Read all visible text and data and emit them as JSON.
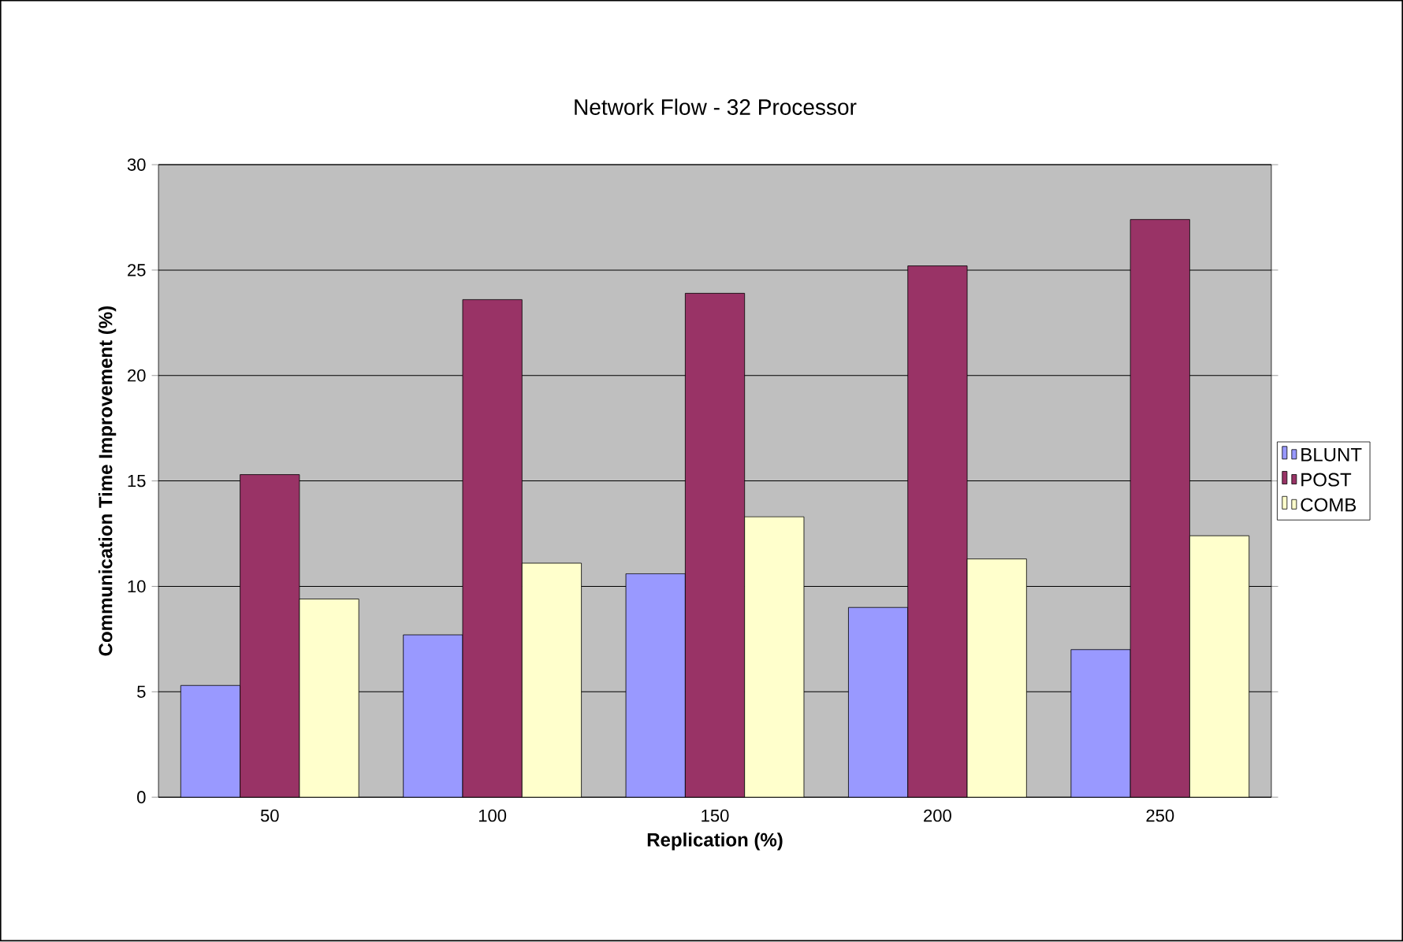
{
  "chart_data": {
    "type": "bar",
    "title": "Network Flow - 32 Processor",
    "xlabel": "Replication (%)",
    "ylabel": "Communication Time Improvement (%)",
    "categories": [
      "50",
      "100",
      "150",
      "200",
      "250"
    ],
    "series": [
      {
        "name": "BLUNT",
        "color": "#9999ff",
        "values": [
          5.3,
          7.7,
          10.6,
          9.0,
          7.0
        ]
      },
      {
        "name": "POST",
        "color": "#993366",
        "values": [
          15.3,
          23.6,
          23.9,
          25.2,
          27.4
        ]
      },
      {
        "name": "COMB",
        "color": "#ffffcc",
        "values": [
          9.4,
          11.1,
          13.3,
          11.3,
          12.4
        ]
      }
    ],
    "ylim": [
      0,
      30
    ],
    "yticks": [
      0,
      5,
      10,
      15,
      20,
      25,
      30
    ],
    "grid": "y",
    "legend": "right"
  }
}
